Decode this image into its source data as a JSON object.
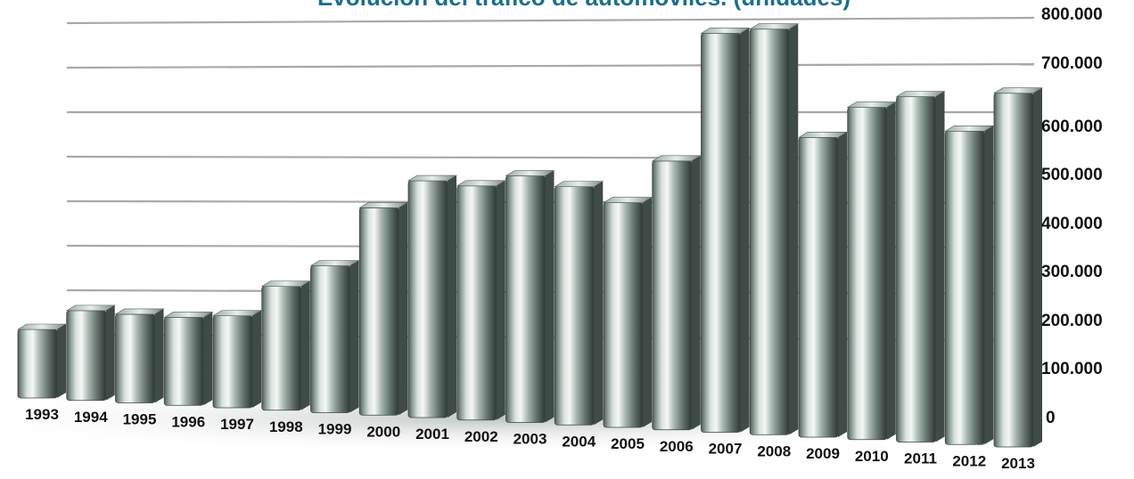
{
  "chart_data": {
    "type": "bar",
    "title": "Evolución del tráfico de automóviles. (unidades)",
    "xlabel": "",
    "ylabel": "",
    "categories": [
      "1993",
      "1994",
      "1995",
      "1996",
      "1997",
      "1998",
      "1999",
      "2000",
      "2001",
      "2002",
      "2003",
      "2004",
      "2005",
      "2006",
      "2007",
      "2008",
      "2009",
      "2010",
      "2011",
      "2012",
      "2013"
    ],
    "values": [
      147000,
      191000,
      187000,
      184000,
      191000,
      255000,
      300000,
      420000,
      476000,
      467000,
      488000,
      468000,
      438000,
      520000,
      766000,
      773000,
      567000,
      624000,
      644000,
      580000,
      650000
    ],
    "ylim": [
      0,
      800000
    ],
    "yticks": [
      {
        "value": 0,
        "label": "0"
      },
      {
        "value": 100000,
        "label": "100.000"
      },
      {
        "value": 200000,
        "label": "200.000"
      },
      {
        "value": 300000,
        "label": "300.000"
      },
      {
        "value": 400000,
        "label": "400.000"
      },
      {
        "value": 500000,
        "label": "500.000"
      },
      {
        "value": 600000,
        "label": "600.000"
      },
      {
        "value": 700000,
        "label": "700.000"
      },
      {
        "value": 800000,
        "label": "800.000"
      }
    ],
    "grid": true,
    "style": "3d-metallic",
    "colors": {
      "title": "#1a6f8e",
      "bar": "#8fa39a",
      "bar_dark": "#3f4b47",
      "grid": "#a8a8a8"
    }
  }
}
